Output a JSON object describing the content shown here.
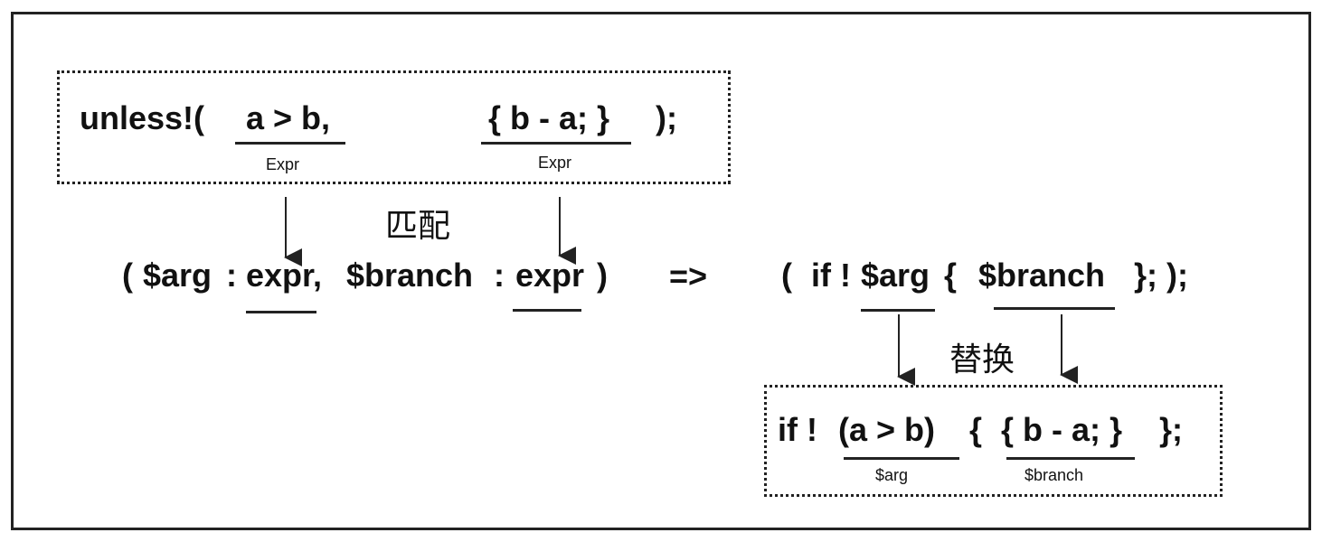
{
  "top_box": {
    "macro_call": "unless!(",
    "arg1": "a > b,",
    "arg2": "{ b - a; }",
    "close": ");",
    "label1": "Expr",
    "label2": "Expr"
  },
  "match_label": "匹配",
  "pattern": {
    "open": "(",
    "arg_var": "$arg",
    "colon1": ":",
    "type1": "expr,",
    "branch_var": "$branch",
    "colon2": ":",
    "type2": "expr",
    "close": ")"
  },
  "arrow_symbol": "=>",
  "expansion": {
    "open": "(",
    "if_not": "if !",
    "arg_var": "$arg",
    "brace_open": "{",
    "branch_var": "$branch",
    "close": "}; );"
  },
  "replace_label": "替换",
  "result_box": {
    "if_not": "if !",
    "cond": "(a > b)",
    "brace_open": "{",
    "branch": "{ b - a; }",
    "close": "};",
    "label1": "$arg",
    "label2": "$branch"
  }
}
